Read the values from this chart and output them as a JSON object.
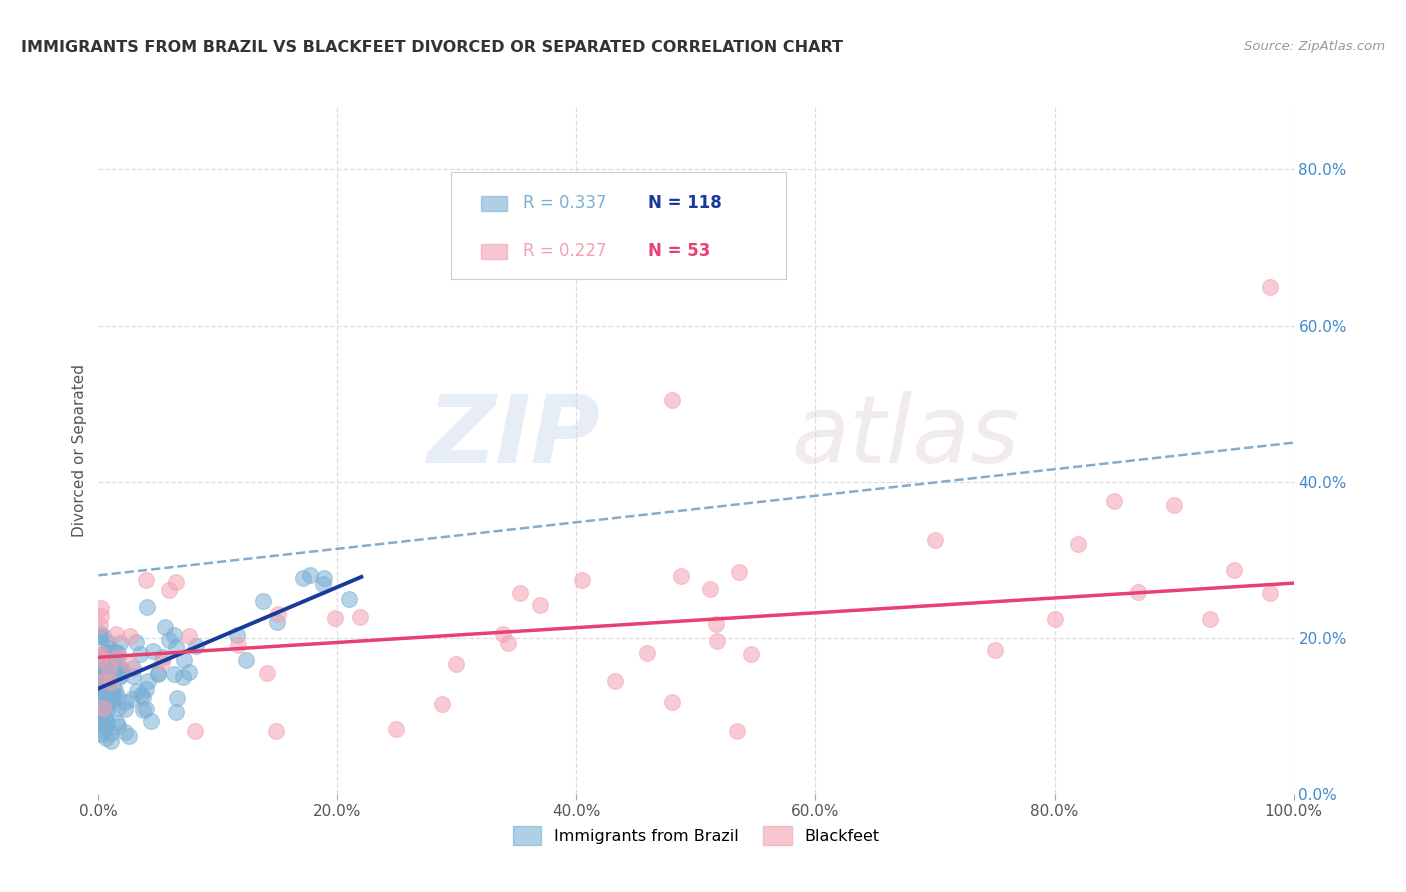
{
  "title": "IMMIGRANTS FROM BRAZIL VS BLACKFEET DIVORCED OR SEPARATED CORRELATION CHART",
  "source": "Source: ZipAtlas.com",
  "ylabel": "Divorced or Separated",
  "legend_brazil": "Immigrants from Brazil",
  "legend_blackfeet": "Blackfeet",
  "R_brazil": 0.337,
  "N_brazil": 118,
  "R_blackfeet": 0.227,
  "N_blackfeet": 53,
  "color_brazil": "#7BAFD4",
  "color_blackfeet": "#F4A0B0",
  "trend_brazil": "#1A3A9A",
  "trend_blackfeet": "#E84070",
  "dash_color": "#88AACC",
  "xlim": [
    0,
    1.0
  ],
  "ylim": [
    0,
    0.88
  ],
  "xtick_vals": [
    0.0,
    0.2,
    0.4,
    0.6,
    0.8,
    1.0
  ],
  "xtick_labels": [
    "0.0%",
    "20.0%",
    "40.0%",
    "60.0%",
    "80.0%",
    "100.0%"
  ],
  "ytick_vals": [
    0.0,
    0.2,
    0.4,
    0.6,
    0.8
  ],
  "ytick_labels": [
    "0.0%",
    "20.0%",
    "40.0%",
    "60.0%",
    "80.0%"
  ],
  "right_axis_color": "#4488CC",
  "grid_color": "#DDDDDD",
  "watermark_zip": "ZIP",
  "watermark_atlas": "atlas",
  "bg_color": "#FFFFFF",
  "title_color": "#333333",
  "source_color": "#999999"
}
